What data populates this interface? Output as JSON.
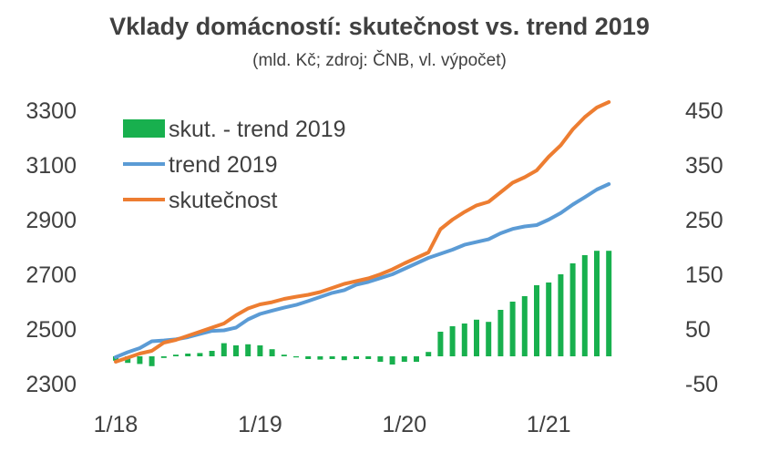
{
  "chart_data": {
    "type": "bar+line",
    "title": "Vklady domácností: skutečnost vs. trend 2019",
    "subtitle": "(mld. Kč; zdroj: ČNB, vl. výpočet)",
    "x_tick_labels": [
      "1/18",
      "1/19",
      "1/20",
      "1/21"
    ],
    "x_months": [
      "1/18",
      "2/18",
      "3/18",
      "4/18",
      "5/18",
      "6/18",
      "7/18",
      "8/18",
      "9/18",
      "10/18",
      "11/18",
      "12/18",
      "1/19",
      "2/19",
      "3/19",
      "4/19",
      "5/19",
      "6/19",
      "7/19",
      "8/19",
      "9/19",
      "10/19",
      "11/19",
      "12/19",
      "1/20",
      "2/20",
      "3/20",
      "4/20",
      "5/20",
      "6/20",
      "7/20",
      "8/20",
      "9/20",
      "10/20",
      "11/20",
      "12/20",
      "1/21",
      "2/21",
      "3/21",
      "4/21",
      "5/21",
      "6/21"
    ],
    "left_axis": {
      "min": 2300,
      "max": 3300,
      "ticks": [
        2300,
        2500,
        2700,
        2900,
        3100,
        3300
      ]
    },
    "right_axis": {
      "min": -50,
      "max": 450,
      "ticks": [
        -50,
        50,
        150,
        250,
        350,
        450
      ]
    },
    "series": [
      {
        "name": "skut. - trend 2019",
        "type": "bar",
        "axis": "right",
        "color": "#18b04e",
        "values": [
          -8,
          -12,
          -14,
          -18,
          -3,
          3,
          5,
          6,
          10,
          24,
          20,
          22,
          20,
          13,
          3,
          -2,
          -5,
          -6,
          -5,
          -7,
          -5,
          -5,
          -10,
          -15,
          -10,
          -10,
          8,
          45,
          55,
          60,
          67,
          63,
          85,
          100,
          110,
          130,
          135,
          150,
          170,
          185,
          193,
          193
        ]
      },
      {
        "name": "trend 2019",
        "type": "line",
        "axis": "left",
        "color": "#5b9bd5",
        "values": [
          2397,
          2415,
          2430,
          2455,
          2458,
          2462,
          2470,
          2482,
          2493,
          2495,
          2505,
          2535,
          2555,
          2567,
          2578,
          2588,
          2602,
          2617,
          2632,
          2642,
          2662,
          2672,
          2686,
          2700,
          2720,
          2740,
          2760,
          2775,
          2790,
          2808,
          2818,
          2828,
          2850,
          2866,
          2875,
          2880,
          2900,
          2924,
          2955,
          2982,
          3010,
          3030
        ]
      },
      {
        "name": "skutečnost",
        "type": "line",
        "axis": "left",
        "color": "#ed7d31",
        "values": [
          2380,
          2395,
          2410,
          2420,
          2450,
          2460,
          2475,
          2490,
          2505,
          2520,
          2550,
          2575,
          2590,
          2598,
          2610,
          2618,
          2625,
          2635,
          2650,
          2665,
          2675,
          2685,
          2700,
          2718,
          2740,
          2760,
          2780,
          2865,
          2900,
          2928,
          2952,
          2965,
          3000,
          3035,
          3055,
          3080,
          3130,
          3172,
          3230,
          3275,
          3310,
          3330
        ]
      }
    ],
    "legend_position": "top-left",
    "grid": false
  }
}
